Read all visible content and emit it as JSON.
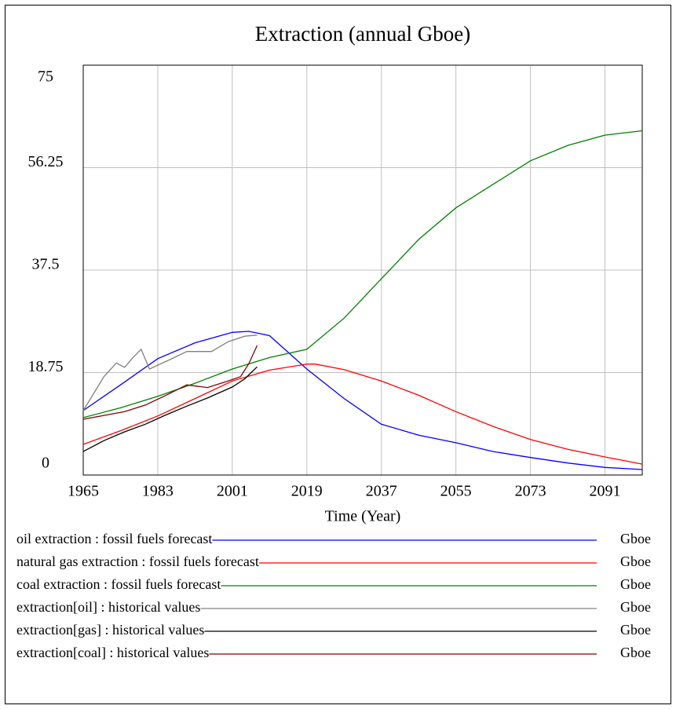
{
  "chart_data": {
    "type": "line",
    "title": "Extraction (annual Gboe)",
    "x_label": "Time (Year)",
    "xlim": [
      1965,
      2100
    ],
    "xticks": [
      1965,
      1983,
      2001,
      2019,
      2037,
      2055,
      2073,
      2091
    ],
    "ylim": [
      0,
      75
    ],
    "yticks": [
      0,
      18.75,
      37.5,
      56.25,
      75
    ],
    "grid": true,
    "series": [
      {
        "name": "oil extraction : fossil fuels forecast",
        "unit": "Gboe",
        "color": "#0000ff",
        "x": [
          1965,
          1974,
          1983,
          1992,
          2001,
          2005,
          2010,
          2019,
          2028,
          2037,
          2046,
          2055,
          2064,
          2073,
          2082,
          2091,
          2100
        ],
        "values": [
          11.8,
          16.5,
          21.3,
          24.2,
          26.1,
          26.3,
          25.5,
          19.4,
          14.0,
          9.3,
          7.3,
          5.9,
          4.3,
          3.2,
          2.2,
          1.4,
          1.0
        ]
      },
      {
        "name": "natural gas extraction : fossil fuels forecast",
        "unit": "Gboe",
        "color": "#ff0000",
        "x": [
          1965,
          1974,
          1983,
          1992,
          2001,
          2010,
          2019,
          2021,
          2028,
          2037,
          2046,
          2055,
          2064,
          2073,
          2082,
          2091,
          2100
        ],
        "values": [
          5.6,
          8.1,
          10.8,
          14.0,
          17.2,
          19.2,
          20.3,
          20.3,
          19.3,
          17.2,
          14.6,
          11.6,
          8.9,
          6.5,
          4.7,
          3.3,
          2.0
        ]
      },
      {
        "name": "coal extraction : fossil fuels forecast",
        "unit": "Gboe",
        "color": "#008000",
        "x": [
          1965,
          1974,
          1983,
          1992,
          2001,
          2010,
          2019,
          2028,
          2037,
          2046,
          2055,
          2064,
          2073,
          2082,
          2091,
          2100
        ],
        "values": [
          10.5,
          12.3,
          14.4,
          16.8,
          19.4,
          21.5,
          23.0,
          28.7,
          35.9,
          43.1,
          48.9,
          53.2,
          57.5,
          60.3,
          62.2,
          63.0
        ]
      },
      {
        "name": "extraction[oil] : historical values",
        "unit": "Gboe",
        "color": "#808080",
        "x": [
          1965,
          1968,
          1970,
          1973,
          1975,
          1977,
          1979,
          1981,
          1983,
          1987,
          1990,
          1996,
          2000,
          2004,
          2007
        ],
        "values": [
          11.8,
          15.5,
          18.0,
          20.5,
          19.7,
          21.5,
          23.0,
          19.4,
          20.1,
          21.5,
          22.6,
          22.6,
          24.4,
          25.4,
          25.6
        ]
      },
      {
        "name": "extraction[gas] : historical values",
        "unit": "Gboe",
        "color": "#000000",
        "x": [
          1965,
          1970,
          1975,
          1980,
          1985,
          1990,
          1995,
          2001,
          2004,
          2007
        ],
        "values": [
          4.3,
          6.3,
          7.9,
          9.3,
          11.0,
          12.6,
          14.1,
          16.1,
          17.6,
          19.8
        ]
      },
      {
        "name": "extraction[coal] : historical values",
        "unit": "Gboe",
        "color": "#800000",
        "x": [
          1965,
          1970,
          1975,
          1980,
          1985,
          1990,
          1995,
          2000,
          2003,
          2005,
          2007
        ],
        "values": [
          10.2,
          10.9,
          11.6,
          12.8,
          14.6,
          16.5,
          16.0,
          17.2,
          18.0,
          20.4,
          23.7
        ]
      }
    ]
  }
}
